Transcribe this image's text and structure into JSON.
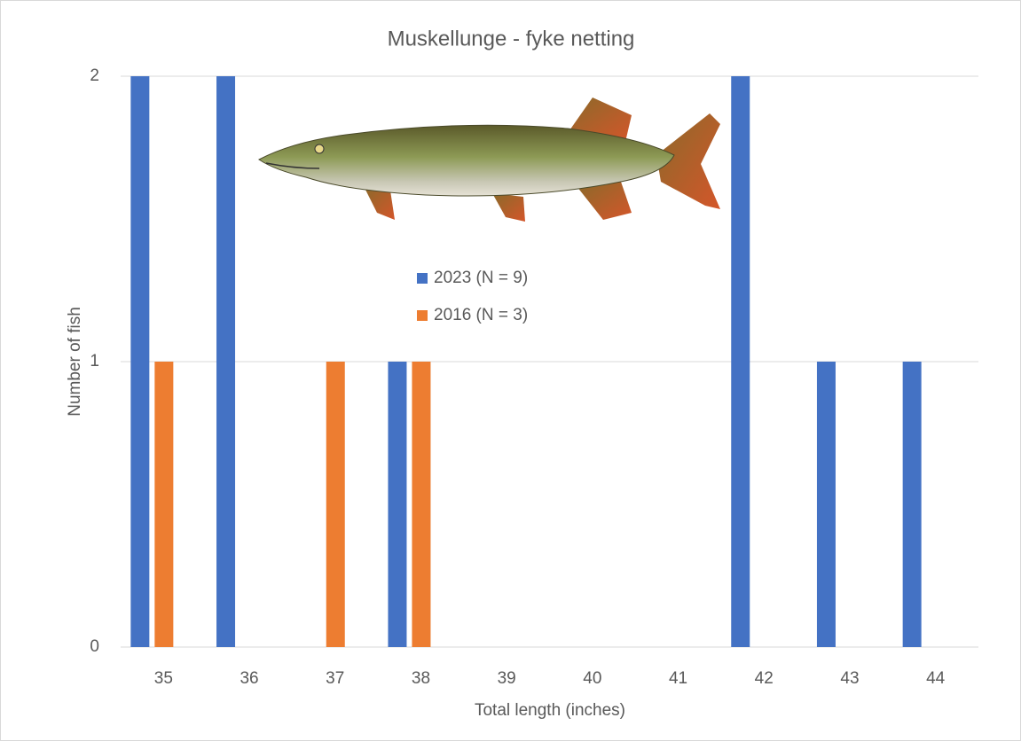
{
  "chart_data": {
    "type": "bar",
    "title": "Muskellunge - fyke netting",
    "x_label": "Total length (inches)",
    "y_label": "Number of fish",
    "categories": [
      "35",
      "36",
      "37",
      "38",
      "39",
      "40",
      "41",
      "42",
      "43",
      "44"
    ],
    "series": [
      {
        "name": "2023 (N = 9)",
        "color": "#4472c4",
        "values": [
          2,
          2,
          0,
          1,
          0,
          0,
          0,
          2,
          1,
          1
        ]
      },
      {
        "name": "2016 (N = 3)",
        "color": "#ed7d31",
        "values": [
          1,
          0,
          1,
          1,
          0,
          0,
          0,
          0,
          0,
          0
        ]
      }
    ],
    "ylim": [
      0,
      2
    ],
    "yticks": [
      0,
      1,
      2
    ],
    "grid": true
  }
}
